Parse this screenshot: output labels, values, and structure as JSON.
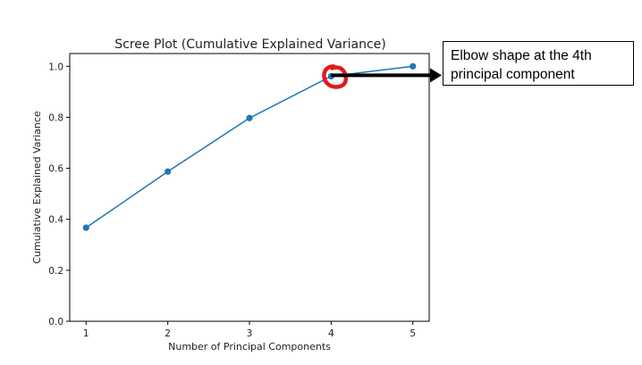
{
  "chart_data": {
    "type": "line",
    "title": "Scree Plot (Cumulative Explained Variance)",
    "xlabel": "Number of Principal Components",
    "ylabel": "Cumulative Explained Variance",
    "x": [
      1,
      2,
      3,
      4,
      5
    ],
    "values": [
      0.367,
      0.587,
      0.797,
      0.961,
      1.0
    ],
    "xlim": [
      0.8,
      5.2
    ],
    "ylim": [
      0.0,
      1.05
    ],
    "xticks": [
      "1",
      "2",
      "3",
      "4",
      "5"
    ],
    "yticks": [
      "0.0",
      "0.2",
      "0.4",
      "0.6",
      "0.8",
      "1.0"
    ],
    "grid": false,
    "colors": {
      "series": "#1f77b4",
      "highlight": "#e31a1c",
      "arrow": "#000000"
    }
  },
  "annotation": {
    "text_line1": "Elbow shape at the 4th",
    "text_line2": "principal component",
    "target_x": 4
  }
}
